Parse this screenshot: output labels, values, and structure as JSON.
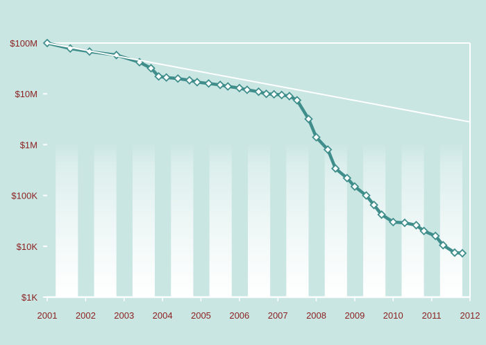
{
  "chart_data": {
    "type": "line",
    "title": "",
    "xlabel": "",
    "ylabel": "",
    "y_scale": "log",
    "ylim": [
      1000,
      100000000
    ],
    "xlim": [
      2001,
      2012
    ],
    "x_tick_labels": [
      "2001",
      "2002",
      "2003",
      "2004",
      "2005",
      "2006",
      "2007",
      "2008",
      "2009",
      "2010",
      "2011",
      "2012"
    ],
    "y_ticks": [
      {
        "value": 1000,
        "label": "$1K"
      },
      {
        "value": 10000,
        "label": "$10K"
      },
      {
        "value": 100000,
        "label": "$100K"
      },
      {
        "value": 1000000,
        "label": "$1M"
      },
      {
        "value": 10000000,
        "label": "$10M"
      },
      {
        "value": 100000000,
        "label": "$100M"
      }
    ],
    "grid": false,
    "series": [
      {
        "style": "line-with-diamond-markers",
        "color": "#3f8e8c",
        "x": [
          2001.0,
          2001.6,
          2002.1,
          2002.8,
          2003.4,
          2003.7,
          2003.9,
          2004.1,
          2004.4,
          2004.7,
          2004.9,
          2005.2,
          2005.5,
          2005.7,
          2006.0,
          2006.2,
          2006.5,
          2006.7,
          2006.9,
          2007.1,
          2007.3,
          2007.5,
          2007.8,
          2008.0,
          2008.3,
          2008.5,
          2008.8,
          2009.0,
          2009.3,
          2009.5,
          2009.7,
          2010.0,
          2010.3,
          2010.6,
          2010.8,
          2011.1,
          2011.3,
          2011.6,
          2011.8
        ],
        "values": [
          100000000,
          78000000,
          68000000,
          58000000,
          42000000,
          32000000,
          22000000,
          21000000,
          20000000,
          18500000,
          17000000,
          16000000,
          15000000,
          14000000,
          13000000,
          12000000,
          11000000,
          10000000,
          9800000,
          9500000,
          9000000,
          7500000,
          3200000,
          1400000,
          800000,
          340000,
          220000,
          150000,
          100000,
          65000,
          42000,
          30000,
          29000,
          26000,
          20000,
          16000,
          10500,
          7500,
          7300
        ]
      },
      {
        "style": "plain-line",
        "color": "#ffffff",
        "x": [
          2001.0,
          2012.0
        ],
        "values": [
          100000000,
          2800000
        ]
      }
    ]
  }
}
